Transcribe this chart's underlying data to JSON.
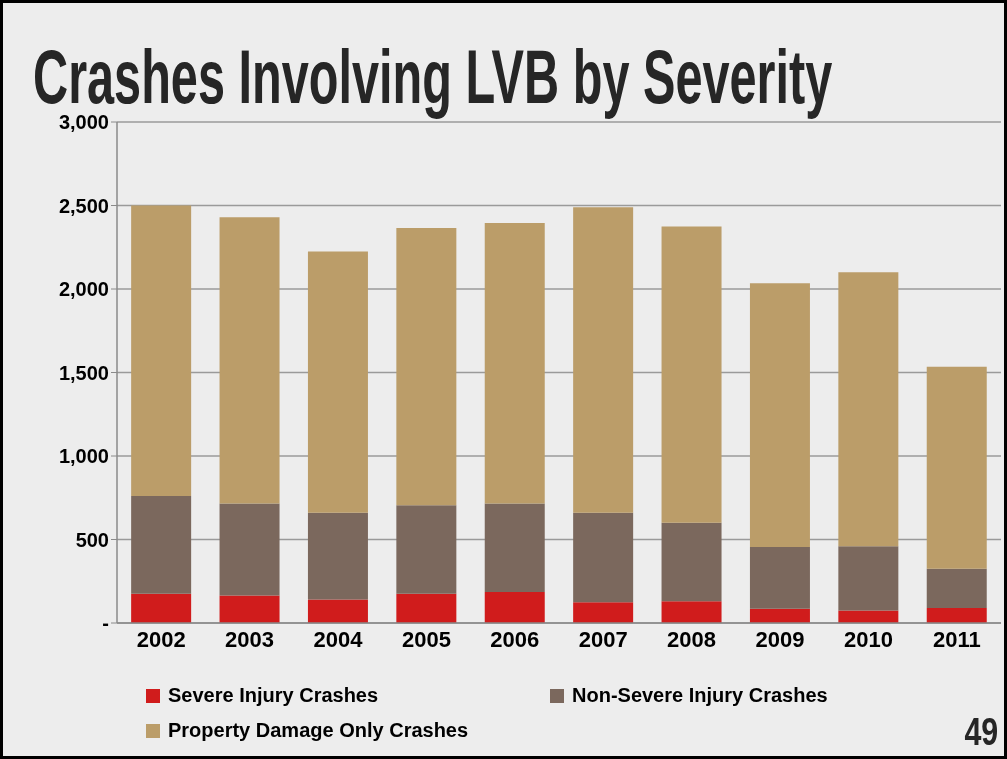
{
  "chart_data": {
    "type": "bar",
    "title": "Crashes Involving LVB by Severity",
    "categories": [
      "2002",
      "2003",
      "2004",
      "2005",
      "2006",
      "2007",
      "2008",
      "2009",
      "2010",
      "2011"
    ],
    "series": [
      {
        "name": "Severe Injury Crashes",
        "color": "#d01c1c",
        "values": [
          175,
          165,
          140,
          175,
          185,
          125,
          130,
          85,
          75,
          90
        ]
      },
      {
        "name": "Non-Severe Injury Crashes",
        "color": "#7b685d",
        "values": [
          585,
          550,
          520,
          530,
          530,
          535,
          470,
          370,
          385,
          235
        ]
      },
      {
        "name": "Property Damage Only Crashes",
        "color": "#bb9d69",
        "values": [
          1740,
          1715,
          1565,
          1660,
          1680,
          1830,
          1775,
          1580,
          1640,
          1210
        ]
      }
    ],
    "stacked": true,
    "ylim": [
      0,
      3000
    ],
    "yticks": [
      {
        "value": 0,
        "label": "-"
      },
      500,
      {
        "value": 1000,
        "label": "1,000"
      },
      {
        "value": 1500,
        "label": "1,500"
      },
      {
        "value": 2000,
        "label": "2,000"
      },
      {
        "value": 2500,
        "label": "2,500"
      },
      {
        "value": 3000,
        "label": "3,000"
      }
    ],
    "grid": "y",
    "legend": "bottom",
    "annotations": [
      "49"
    ]
  }
}
